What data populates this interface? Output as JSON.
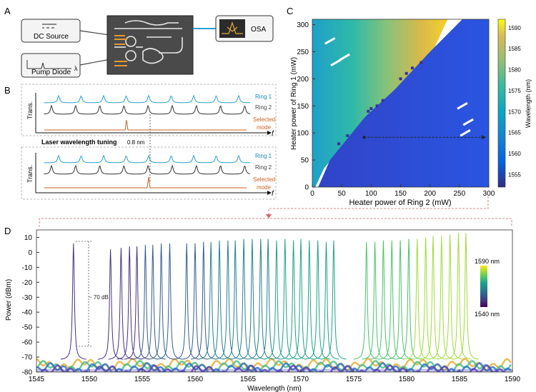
{
  "panels": {
    "a": "A",
    "b": "B",
    "c": "C",
    "d": "D"
  },
  "panel_a": {
    "dc_source": "DC Source",
    "pump_diode": "Pump Diode",
    "lambda_symbol": "λ",
    "osa": "OSA"
  },
  "panel_b": {
    "ring1": "Ring 1",
    "ring2": "Ring 2",
    "selected_line1": "Selected",
    "selected_line2": "mode",
    "trans_label": "Trans.",
    "f_label": "f",
    "tuning_label": "Laser wavelength tuning",
    "spacing_label": "0.8 nm"
  },
  "panel_c": {
    "xlabel": "Heater power of Ring 2 (mW)",
    "ylabel": "Heater power of Ring 1 (mW)",
    "colorbar_label": "Wavelength (nm)",
    "x_ticks": [
      "0",
      "50",
      "100",
      "150",
      "200",
      "250",
      "300"
    ],
    "y_ticks": [
      "0",
      "50",
      "100",
      "150",
      "200",
      "250",
      "300"
    ],
    "cbar_ticks": [
      "1555",
      "1560",
      "1565",
      "1570",
      "1575",
      "1580",
      "1585",
      "1590"
    ]
  },
  "chart_data": [
    {
      "type": "heatmap",
      "xlabel": "Heater power of Ring 2 (mW)",
      "ylabel": "Heater power of Ring 1 (mW)",
      "colorbar_label": "Wavelength (nm)",
      "xlim": [
        0,
        300
      ],
      "ylim": [
        0,
        310
      ],
      "clim": [
        1552,
        1592
      ],
      "colormap": "viridis",
      "regions": [
        {
          "region": "lower-right",
          "wavelength_nm_at_x0": 1553,
          "wavelength_nm_at_x300": 1556
        },
        {
          "region": "upper-left",
          "wavelength_nm_at_x0": 1566,
          "wavelength_nm_at_x300": 1590
        }
      ],
      "arrow": {
        "from": [
          88,
          92
        ],
        "to": [
          295,
          92
        ]
      }
    },
    {
      "type": "line",
      "xlabel": "Wavelength (nm)",
      "ylabel": "Power (dBm)",
      "xlim": [
        1545,
        1590
      ],
      "ylim": [
        -80,
        15
      ],
      "x_ticks": [
        1545,
        1550,
        1555,
        1560,
        1565,
        1570,
        1575,
        1580,
        1585,
        1590
      ],
      "y_ticks": [
        10,
        0,
        -10,
        -20,
        -30,
        -40,
        -50,
        -60,
        -70,
        -80
      ],
      "colorbar": {
        "top": "1590 nm",
        "bottom": "1540 nm"
      },
      "annotation": "~ 70 dB",
      "noise_floor_dbm": -72,
      "peaks": [
        {
          "x": 1548.5,
          "y": 6
        },
        {
          "x": 1552.0,
          "y": 2
        },
        {
          "x": 1553.0,
          "y": 3
        },
        {
          "x": 1553.8,
          "y": 4
        },
        {
          "x": 1554.5,
          "y": 4
        },
        {
          "x": 1555.3,
          "y": 5
        },
        {
          "x": 1556.0,
          "y": 5
        },
        {
          "x": 1556.8,
          "y": 6
        },
        {
          "x": 1557.6,
          "y": 6
        },
        {
          "x": 1559.2,
          "y": 6
        },
        {
          "x": 1560.0,
          "y": 6
        },
        {
          "x": 1560.8,
          "y": 7
        },
        {
          "x": 1561.5,
          "y": 7
        },
        {
          "x": 1562.3,
          "y": 8
        },
        {
          "x": 1563.1,
          "y": 8
        },
        {
          "x": 1563.8,
          "y": 8
        },
        {
          "x": 1564.6,
          "y": 9
        },
        {
          "x": 1565.4,
          "y": 9
        },
        {
          "x": 1566.2,
          "y": 9
        },
        {
          "x": 1566.9,
          "y": 9
        },
        {
          "x": 1567.7,
          "y": 8
        },
        {
          "x": 1568.5,
          "y": 9
        },
        {
          "x": 1569.3,
          "y": 8
        },
        {
          "x": 1570.0,
          "y": 9
        },
        {
          "x": 1570.8,
          "y": 8
        },
        {
          "x": 1571.6,
          "y": 8
        },
        {
          "x": 1572.4,
          "y": 7
        },
        {
          "x": 1573.1,
          "y": 8
        },
        {
          "x": 1576.2,
          "y": 7
        },
        {
          "x": 1577.0,
          "y": 7
        },
        {
          "x": 1577.8,
          "y": 8
        },
        {
          "x": 1578.6,
          "y": 8
        },
        {
          "x": 1579.4,
          "y": 8
        },
        {
          "x": 1580.2,
          "y": 9
        },
        {
          "x": 1581.0,
          "y": 9
        },
        {
          "x": 1581.8,
          "y": 10
        },
        {
          "x": 1582.5,
          "y": 11
        },
        {
          "x": 1583.3,
          "y": 11
        },
        {
          "x": 1584.1,
          "y": 12
        },
        {
          "x": 1584.9,
          "y": 13
        },
        {
          "x": 1585.6,
          "y": 13
        }
      ]
    }
  ]
}
